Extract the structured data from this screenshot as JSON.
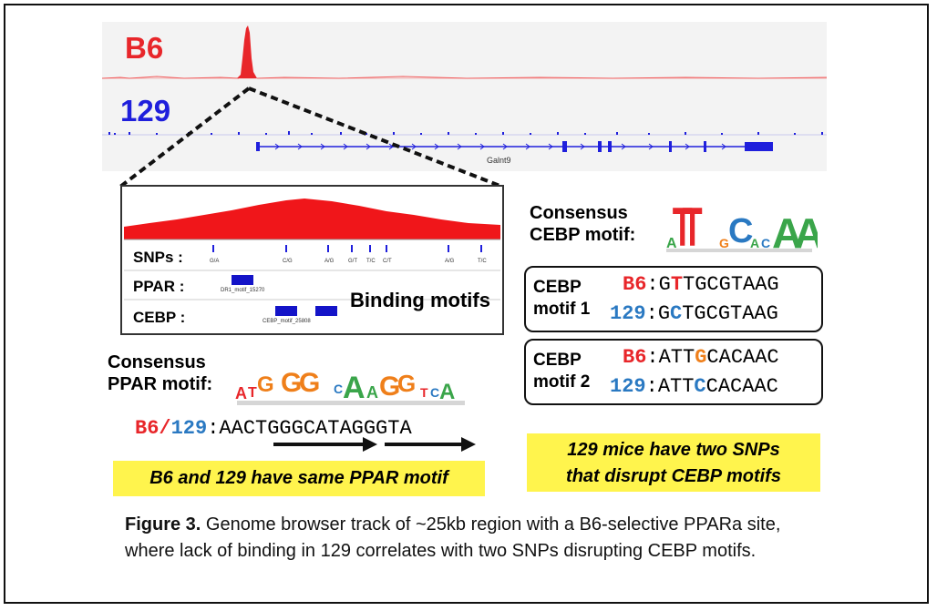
{
  "tracks": {
    "b6_label": "B6",
    "s129_label": "129",
    "gene_label": "Galnt9",
    "b6_color": "#e8262a",
    "s129_color": "#1f1fdc"
  },
  "zoom": {
    "snps_label": "SNPs :",
    "ppar_label": "PPAR :",
    "cebp_label": "CEBP :",
    "binding_label": "Binding motifs",
    "snp_alleles": [
      "G/A",
      "C/G",
      "A/G",
      "G/T",
      "T/C",
      "C/T",
      "A/G",
      "T/C"
    ],
    "ppar_motif_tiny": "DR1_motif_15270",
    "cebp_motif_tiny": "CEBP_motif_25808"
  },
  "ppar": {
    "consensus_line1": "Consensus",
    "consensus_line2": "PPAR motif:",
    "strain_b6": "B6",
    "slash": "/",
    "strain_129": "129",
    "colon": ":",
    "sequence": "AACTGGGCATAGGGTA",
    "note": "B6 and 129 have same PPAR motif"
  },
  "cebp": {
    "consensus_line1": "Consensus",
    "consensus_line2": "CEBP motif:",
    "motif1_line1": "CEBP",
    "motif1_line2": "motif 1",
    "motif2_line1": "CEBP",
    "motif2_line2": "motif 2",
    "m1_b6_strain": "B6",
    "m1_b6_pre": "G",
    "m1_b6_snp": "T",
    "m1_b6_post": "TGCGTAAG",
    "m1_129_strain": "129",
    "m1_129_pre": "G",
    "m1_129_snp": "C",
    "m1_129_post": "TGCGTAAG",
    "m2_b6_strain": "B6",
    "m2_b6_pre": "ATT",
    "m2_b6_snp": "G",
    "m2_b6_post": "CACAAC",
    "m2_129_strain": "129",
    "m2_129_pre": "ATT",
    "m2_129_snp": "C",
    "m2_129_post": "CACAAC",
    "colon": ":",
    "note_line1": "129 mice have two SNPs",
    "note_line2": "that disrupt CEBP motifs"
  },
  "caption": {
    "label": "Figure 3.",
    "text": " Genome browser track of ~25kb region with a B6-selective PPARa site, where lack of binding in 129 correlates with two SNPs disrupting CEBP motifs."
  }
}
